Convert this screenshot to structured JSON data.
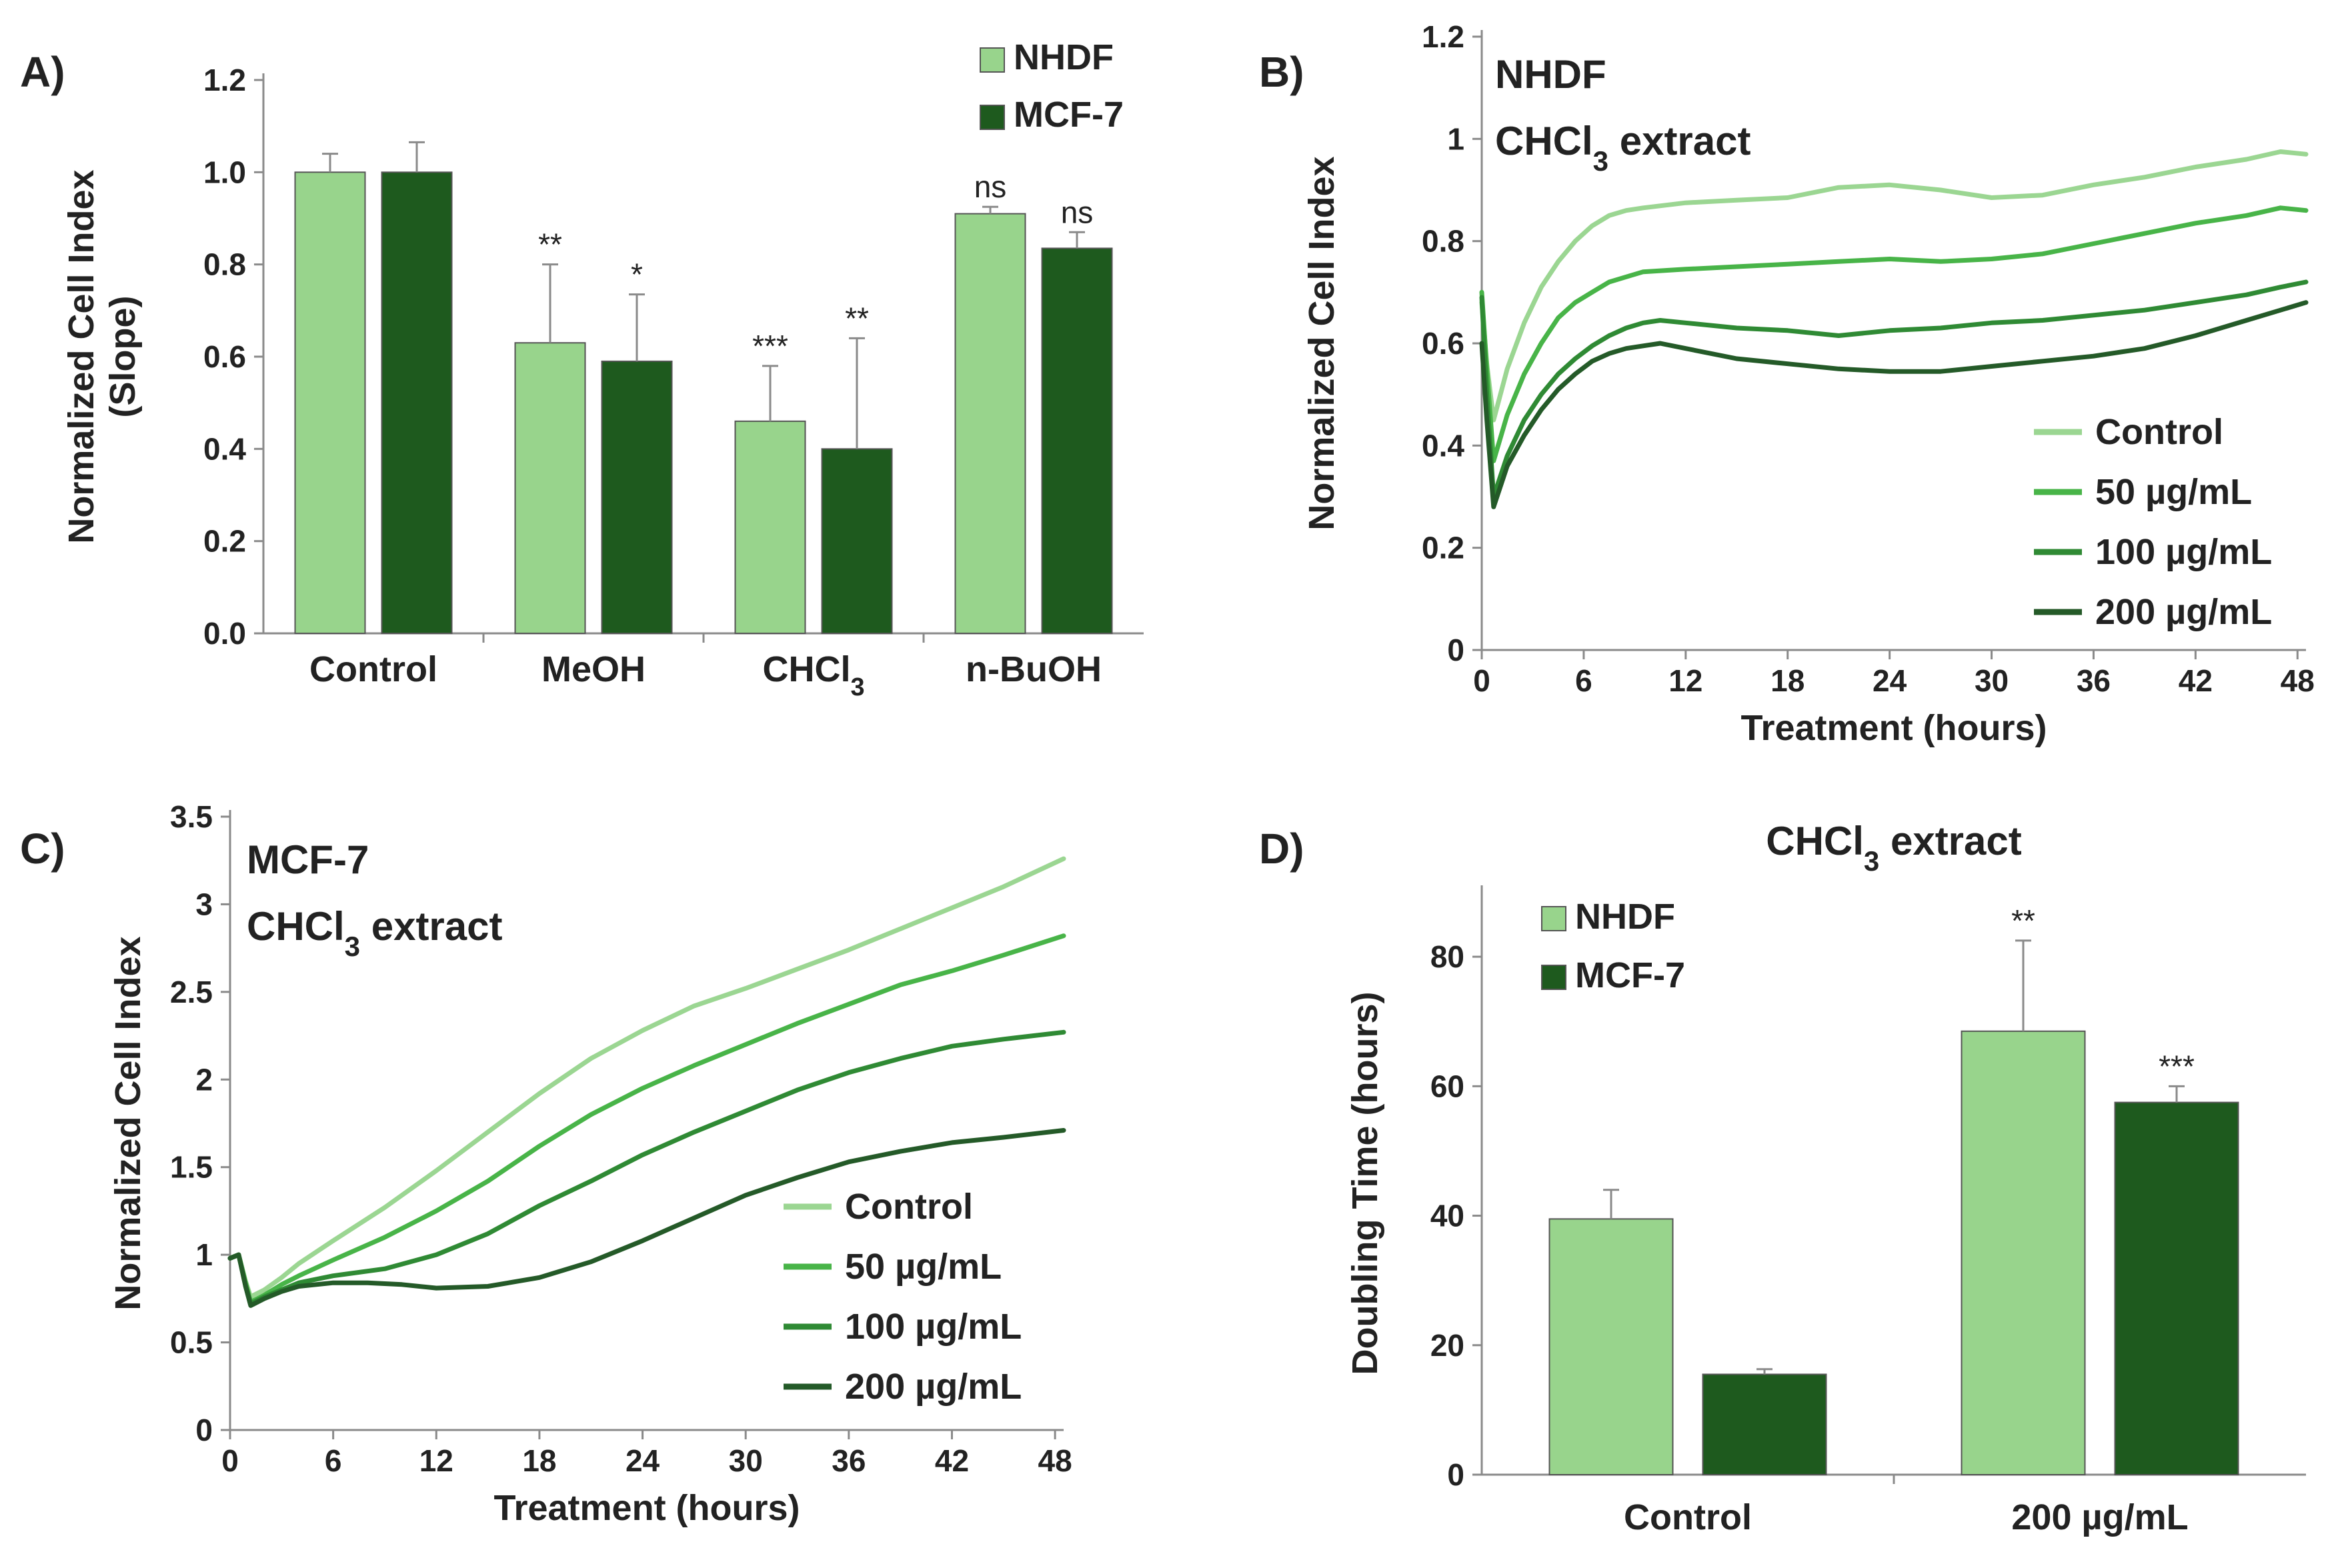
{
  "colors": {
    "nhdf": "#98d48c",
    "mcf7": "#1e5a1e",
    "control_line": "#9bd692",
    "line_50": "#48b448",
    "line_100": "#2f8a34",
    "line_200": "#245a28",
    "axis": "#8a8a8a",
    "text": "#222222",
    "error_bar": "#8a8a8a"
  },
  "chart_data": [
    {
      "id": "A",
      "panel_label": "A)",
      "type": "bar",
      "categories": [
        "Control",
        "MeOH",
        "CHCl3",
        "n-BuOH"
      ],
      "category_labels": [
        {
          "main": "Control",
          "sub": ""
        },
        {
          "main": "MeOH",
          "sub": ""
        },
        {
          "main": "CHCl",
          "sub": "3"
        },
        {
          "main": "n-BuOH",
          "sub": ""
        }
      ],
      "series": [
        {
          "name": "NHDF",
          "color_key": "nhdf",
          "values": [
            1.0,
            0.63,
            0.46,
            0.91
          ],
          "errors": [
            0.04,
            0.17,
            0.12,
            0.015
          ],
          "significance": [
            "",
            "**",
            "***",
            "ns"
          ]
        },
        {
          "name": "MCF-7",
          "color_key": "mcf7",
          "values": [
            1.0,
            0.59,
            0.4,
            0.835
          ],
          "errors": [
            0.065,
            0.145,
            0.24,
            0.035
          ],
          "significance": [
            "",
            "*",
            "**",
            "ns"
          ]
        }
      ],
      "ylabel_lines": [
        "Normalized Cell Index",
        "(Slope)"
      ],
      "xlabel": "",
      "ylim": [
        0,
        1.2
      ],
      "yticks": [
        0.0,
        0.2,
        0.4,
        0.6,
        0.8,
        1.0,
        1.2
      ],
      "ytick_labels": [
        "0.0",
        "0.2",
        "0.4",
        "0.6",
        "0.8",
        "1.0",
        "1.2"
      ],
      "legend_position": "top-right"
    },
    {
      "id": "B",
      "panel_label": "B)",
      "type": "line",
      "inset_title": {
        "line1": "NHDF",
        "line2_main": "CHCl",
        "line2_sub": "3",
        "line2_tail": " extract"
      },
      "xlabel": "Treatment (hours)",
      "ylabel": "Normalized Cell Index",
      "xlim": [
        0,
        48.5
      ],
      "ylim": [
        0,
        1.2
      ],
      "xticks": [
        0,
        6,
        12,
        18,
        24,
        30,
        36,
        42,
        48
      ],
      "xtick_labels": [
        "0",
        "6",
        "12",
        "18",
        "24",
        "30",
        "36",
        "42",
        "48"
      ],
      "yticks": [
        0,
        0.2,
        0.4,
        0.6,
        0.8,
        1.0,
        1.2
      ],
      "ytick_labels": [
        "0",
        "0.2",
        "0.4",
        "0.6",
        "0.8",
        "1",
        "1.2"
      ],
      "legend_position": "bottom-right",
      "series": [
        {
          "name": "Control",
          "color_key": "control_line",
          "x": [
            0,
            0.3,
            0.7,
            1.5,
            2.5,
            3.5,
            4.5,
            5.5,
            6.5,
            7.5,
            8.5,
            9.5,
            12,
            15,
            18,
            21,
            24,
            27,
            30,
            33,
            36,
            39,
            42,
            45,
            47,
            48.5
          ],
          "y": [
            0.68,
            0.56,
            0.45,
            0.55,
            0.64,
            0.71,
            0.76,
            0.8,
            0.83,
            0.85,
            0.86,
            0.865,
            0.875,
            0.88,
            0.885,
            0.905,
            0.91,
            0.9,
            0.885,
            0.89,
            0.91,
            0.925,
            0.945,
            0.96,
            0.975,
            0.97
          ]
        },
        {
          "name": "50 µg/mL",
          "color_key": "line_50",
          "x": [
            0,
            0.3,
            0.7,
            1.5,
            2.5,
            3.5,
            4.5,
            5.5,
            6.5,
            7.5,
            8.5,
            9.5,
            12,
            15,
            18,
            21,
            24,
            27,
            30,
            33,
            36,
            39,
            42,
            45,
            47,
            48.5
          ],
          "y": [
            0.7,
            0.55,
            0.37,
            0.46,
            0.54,
            0.6,
            0.65,
            0.68,
            0.7,
            0.72,
            0.73,
            0.74,
            0.745,
            0.75,
            0.755,
            0.76,
            0.765,
            0.76,
            0.765,
            0.775,
            0.795,
            0.815,
            0.835,
            0.85,
            0.865,
            0.86
          ]
        },
        {
          "name": "100 µg/mL",
          "color_key": "line_100",
          "x": [
            0,
            0.3,
            0.7,
            1.5,
            2.5,
            3.5,
            4.5,
            5.5,
            6.5,
            7.5,
            8.5,
            9.5,
            10.5,
            12,
            15,
            18,
            21,
            24,
            27,
            30,
            33,
            36,
            39,
            42,
            45,
            47,
            48.5
          ],
          "y": [
            0.69,
            0.5,
            0.3,
            0.38,
            0.45,
            0.5,
            0.54,
            0.57,
            0.595,
            0.615,
            0.63,
            0.64,
            0.645,
            0.64,
            0.63,
            0.625,
            0.615,
            0.625,
            0.63,
            0.64,
            0.645,
            0.655,
            0.665,
            0.68,
            0.695,
            0.71,
            0.72
          ]
        },
        {
          "name": "200 µg/mL",
          "color_key": "line_200",
          "x": [
            0,
            0.3,
            0.7,
            1.5,
            2.5,
            3.5,
            4.5,
            5.5,
            6.5,
            7.5,
            8.5,
            9.5,
            10.5,
            12,
            15,
            18,
            21,
            24,
            27,
            30,
            33,
            36,
            39,
            42,
            45,
            47,
            48.5
          ],
          "y": [
            0.6,
            0.45,
            0.28,
            0.36,
            0.42,
            0.47,
            0.51,
            0.54,
            0.565,
            0.58,
            0.59,
            0.595,
            0.6,
            0.59,
            0.57,
            0.56,
            0.55,
            0.545,
            0.545,
            0.555,
            0.565,
            0.575,
            0.59,
            0.615,
            0.645,
            0.665,
            0.68
          ]
        }
      ]
    },
    {
      "id": "C",
      "panel_label": "C)",
      "type": "line",
      "inset_title": {
        "line1": "MCF-7",
        "line2_main": "CHCl",
        "line2_sub": "3",
        "line2_tail": " extract"
      },
      "xlabel": "Treatment (hours)",
      "ylabel": "Normalized Cell Index",
      "xlim": [
        0,
        48.5
      ],
      "ylim": [
        0,
        3.5
      ],
      "xticks": [
        0,
        6,
        12,
        18,
        24,
        30,
        36,
        42,
        48
      ],
      "xtick_labels": [
        "0",
        "6",
        "12",
        "18",
        "24",
        "30",
        "36",
        "42",
        "48"
      ],
      "yticks": [
        0,
        0.5,
        1,
        1.5,
        2,
        2.5,
        3,
        3.5
      ],
      "ytick_labels": [
        "0",
        "0.5",
        "1",
        "1.5",
        "2",
        "2.5",
        "3",
        "3.5"
      ],
      "legend_position": "bottom-right",
      "series": [
        {
          "name": "Control",
          "color_key": "control_line",
          "x": [
            0,
            0.5,
            0.9,
            1.2,
            2,
            3,
            4,
            6,
            9,
            12,
            15,
            18,
            21,
            24,
            27,
            30,
            33,
            36,
            39,
            42,
            45,
            48.5
          ],
          "y": [
            0.98,
            1.0,
            0.85,
            0.76,
            0.8,
            0.87,
            0.95,
            1.08,
            1.27,
            1.48,
            1.7,
            1.92,
            2.12,
            2.28,
            2.42,
            2.52,
            2.63,
            2.74,
            2.86,
            2.98,
            3.1,
            3.26
          ]
        },
        {
          "name": "50 µg/mL",
          "color_key": "line_50",
          "x": [
            0,
            0.5,
            0.9,
            1.2,
            2,
            3,
            4,
            6,
            9,
            12,
            15,
            18,
            21,
            24,
            27,
            30,
            33,
            36,
            39,
            42,
            45,
            48.5
          ],
          "y": [
            0.98,
            1.0,
            0.84,
            0.73,
            0.77,
            0.83,
            0.88,
            0.97,
            1.1,
            1.25,
            1.42,
            1.62,
            1.8,
            1.95,
            2.08,
            2.2,
            2.32,
            2.43,
            2.54,
            2.62,
            2.71,
            2.82
          ]
        },
        {
          "name": "100 µg/mL",
          "color_key": "line_100",
          "x": [
            0,
            0.5,
            0.9,
            1.2,
            2,
            3,
            4,
            6,
            9,
            12,
            15,
            18,
            21,
            24,
            27,
            30,
            33,
            36,
            39,
            42,
            45,
            48.5
          ],
          "y": [
            0.98,
            1.0,
            0.83,
            0.72,
            0.76,
            0.8,
            0.84,
            0.88,
            0.92,
            1.0,
            1.12,
            1.28,
            1.42,
            1.57,
            1.7,
            1.82,
            1.94,
            2.04,
            2.12,
            2.19,
            2.23,
            2.27
          ]
        },
        {
          "name": "200 µg/mL",
          "color_key": "line_200",
          "x": [
            0,
            0.5,
            0.9,
            1.2,
            2,
            3,
            4,
            6,
            8,
            10,
            12,
            15,
            18,
            21,
            24,
            27,
            30,
            33,
            36,
            39,
            42,
            45,
            48.5
          ],
          "y": [
            0.98,
            1.0,
            0.82,
            0.71,
            0.75,
            0.79,
            0.82,
            0.84,
            0.84,
            0.83,
            0.81,
            0.82,
            0.87,
            0.96,
            1.08,
            1.21,
            1.34,
            1.44,
            1.53,
            1.59,
            1.64,
            1.67,
            1.71
          ]
        }
      ]
    },
    {
      "id": "D",
      "panel_label": "D)",
      "type": "bar",
      "title": {
        "main": "CHCl",
        "sub": "3",
        "tail": " extract"
      },
      "categories": [
        "Control",
        "200 µg/mL"
      ],
      "series": [
        {
          "name": "NHDF",
          "color_key": "nhdf",
          "values": [
            39.5,
            68.5
          ],
          "errors": [
            4.5,
            14
          ],
          "significance": [
            "",
            "**"
          ]
        },
        {
          "name": "MCF-7",
          "color_key": "mcf7",
          "values": [
            15.5,
            57.5
          ],
          "errors": [
            0.8,
            2.5
          ],
          "significance": [
            "",
            "***"
          ]
        }
      ],
      "ylabel": "Doubling Time (hours)",
      "xlabel": "",
      "ylim": [
        0,
        90
      ],
      "yticks": [
        0,
        20,
        40,
        60,
        80
      ],
      "ytick_labels": [
        "0",
        "20",
        "40",
        "60",
        "80"
      ],
      "legend_position": "top-left"
    }
  ]
}
